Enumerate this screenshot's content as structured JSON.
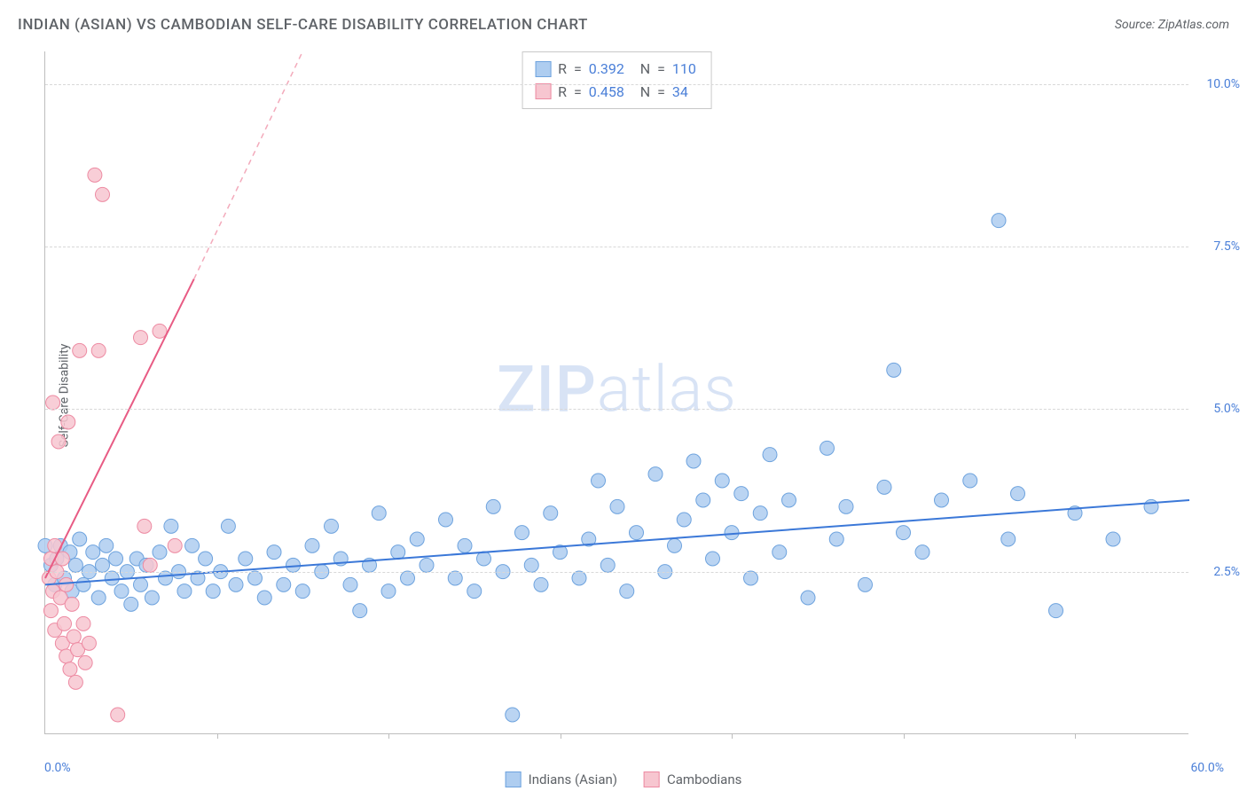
{
  "title": "INDIAN (ASIAN) VS CAMBODIAN SELF-CARE DISABILITY CORRELATION CHART",
  "source": "Source: ZipAtlas.com",
  "y_axis_label": "Self-Care Disability",
  "watermark_bold": "ZIP",
  "watermark_rest": "atlas",
  "plot": {
    "type": "scatter",
    "xlim": [
      0,
      60
    ],
    "ylim": [
      0,
      10.5
    ],
    "y_ticks": [
      2.5,
      5.0,
      7.5,
      10.0
    ],
    "y_tick_labels": [
      "2.5%",
      "5.0%",
      "7.5%",
      "10.0%"
    ],
    "x_tick_marks": [
      9,
      18,
      27,
      36,
      45,
      54
    ],
    "x_min_label": "0.0%",
    "x_max_label": "60.0%",
    "grid_color": "#d8d8d8",
    "series": [
      {
        "name": "Indians (Asian)",
        "color_fill": "#aecdf0",
        "color_stroke": "#6ea3de",
        "marker_r": 8,
        "r_value": "0.392",
        "n_value": "110",
        "trend": {
          "x1": 0,
          "y1": 2.3,
          "x2": 60,
          "y2": 3.6,
          "color": "#3b78d8",
          "width": 2
        },
        "points": [
          [
            0,
            2.9
          ],
          [
            0.3,
            2.6
          ],
          [
            0.5,
            2.3
          ],
          [
            0.6,
            2.7
          ],
          [
            0.8,
            2.9
          ],
          [
            1,
            2.4
          ],
          [
            1.3,
            2.8
          ],
          [
            1.4,
            2.2
          ],
          [
            1.6,
            2.6
          ],
          [
            1.8,
            3.0
          ],
          [
            2,
            2.3
          ],
          [
            2.3,
            2.5
          ],
          [
            2.5,
            2.8
          ],
          [
            2.8,
            2.1
          ],
          [
            3,
            2.6
          ],
          [
            3.2,
            2.9
          ],
          [
            3.5,
            2.4
          ],
          [
            3.7,
            2.7
          ],
          [
            4,
            2.2
          ],
          [
            4.3,
            2.5
          ],
          [
            4.5,
            2.0
          ],
          [
            4.8,
            2.7
          ],
          [
            5,
            2.3
          ],
          [
            5.3,
            2.6
          ],
          [
            5.6,
            2.1
          ],
          [
            6,
            2.8
          ],
          [
            6.3,
            2.4
          ],
          [
            6.6,
            3.2
          ],
          [
            7,
            2.5
          ],
          [
            7.3,
            2.2
          ],
          [
            7.7,
            2.9
          ],
          [
            8,
            2.4
          ],
          [
            8.4,
            2.7
          ],
          [
            8.8,
            2.2
          ],
          [
            9.2,
            2.5
          ],
          [
            9.6,
            3.2
          ],
          [
            10,
            2.3
          ],
          [
            10.5,
            2.7
          ],
          [
            11,
            2.4
          ],
          [
            11.5,
            2.1
          ],
          [
            12,
            2.8
          ],
          [
            12.5,
            2.3
          ],
          [
            13,
            2.6
          ],
          [
            13.5,
            2.2
          ],
          [
            14,
            2.9
          ],
          [
            14.5,
            2.5
          ],
          [
            15,
            3.2
          ],
          [
            15.5,
            2.7
          ],
          [
            16,
            2.3
          ],
          [
            16.5,
            1.9
          ],
          [
            17,
            2.6
          ],
          [
            17.5,
            3.4
          ],
          [
            18,
            2.2
          ],
          [
            18.5,
            2.8
          ],
          [
            19,
            2.4
          ],
          [
            19.5,
            3.0
          ],
          [
            20,
            2.6
          ],
          [
            21,
            3.3
          ],
          [
            21.5,
            2.4
          ],
          [
            22,
            2.9
          ],
          [
            22.5,
            2.2
          ],
          [
            23,
            2.7
          ],
          [
            23.5,
            3.5
          ],
          [
            24,
            2.5
          ],
          [
            24.5,
            0.3
          ],
          [
            25,
            3.1
          ],
          [
            25.5,
            2.6
          ],
          [
            26,
            2.3
          ],
          [
            26.5,
            3.4
          ],
          [
            27,
            2.8
          ],
          [
            28,
            2.4
          ],
          [
            28.5,
            3.0
          ],
          [
            29,
            3.9
          ],
          [
            29.5,
            2.6
          ],
          [
            30,
            3.5
          ],
          [
            30.5,
            2.2
          ],
          [
            31,
            3.1
          ],
          [
            32,
            4.0
          ],
          [
            32.5,
            2.5
          ],
          [
            33,
            2.9
          ],
          [
            33.5,
            3.3
          ],
          [
            34,
            4.2
          ],
          [
            34.5,
            3.6
          ],
          [
            35,
            2.7
          ],
          [
            35.5,
            3.9
          ],
          [
            36,
            3.1
          ],
          [
            36.5,
            3.7
          ],
          [
            37,
            2.4
          ],
          [
            37.5,
            3.4
          ],
          [
            38,
            4.3
          ],
          [
            38.5,
            2.8
          ],
          [
            39,
            3.6
          ],
          [
            40,
            2.1
          ],
          [
            41,
            4.4
          ],
          [
            41.5,
            3.0
          ],
          [
            42,
            3.5
          ],
          [
            43,
            2.3
          ],
          [
            44,
            3.8
          ],
          [
            44.5,
            5.6
          ],
          [
            45,
            3.1
          ],
          [
            46,
            2.8
          ],
          [
            47,
            3.6
          ],
          [
            48.5,
            3.9
          ],
          [
            50,
            7.9
          ],
          [
            50.5,
            3.0
          ],
          [
            51,
            3.7
          ],
          [
            53,
            1.9
          ],
          [
            54,
            3.4
          ],
          [
            56,
            3.0
          ],
          [
            58,
            3.5
          ]
        ]
      },
      {
        "name": "Cambodians",
        "color_fill": "#f7c6d0",
        "color_stroke": "#ed8aa2",
        "marker_r": 8,
        "r_value": "0.458",
        "n_value": "34",
        "trend_solid": {
          "x1": 0,
          "y1": 2.4,
          "x2": 7.8,
          "y2": 7.0,
          "color": "#e85b84",
          "width": 2
        },
        "trend_dash": {
          "x1": 7.8,
          "y1": 7.0,
          "x2": 13.5,
          "y2": 10.5,
          "color": "#f3aabb",
          "width": 1.5
        },
        "points": [
          [
            0.2,
            2.4
          ],
          [
            0.3,
            2.7
          ],
          [
            0.3,
            1.9
          ],
          [
            0.4,
            2.2
          ],
          [
            0.4,
            5.1
          ],
          [
            0.5,
            2.9
          ],
          [
            0.5,
            1.6
          ],
          [
            0.6,
            2.5
          ],
          [
            0.7,
            4.5
          ],
          [
            0.8,
            2.1
          ],
          [
            0.9,
            1.4
          ],
          [
            0.9,
            2.7
          ],
          [
            1.0,
            1.7
          ],
          [
            1.1,
            2.3
          ],
          [
            1.1,
            1.2
          ],
          [
            1.2,
            4.8
          ],
          [
            1.3,
            1.0
          ],
          [
            1.4,
            2.0
          ],
          [
            1.5,
            1.5
          ],
          [
            1.6,
            0.8
          ],
          [
            1.7,
            1.3
          ],
          [
            1.8,
            5.9
          ],
          [
            2.0,
            1.7
          ],
          [
            2.1,
            1.1
          ],
          [
            2.3,
            1.4
          ],
          [
            2.6,
            8.6
          ],
          [
            2.8,
            5.9
          ],
          [
            3.0,
            8.3
          ],
          [
            3.8,
            0.3
          ],
          [
            5.0,
            6.1
          ],
          [
            5.2,
            3.2
          ],
          [
            5.5,
            2.6
          ],
          [
            6.0,
            6.2
          ],
          [
            6.8,
            2.9
          ]
        ]
      }
    ]
  },
  "legend_bottom": [
    {
      "label": "Indians (Asian)",
      "fill": "#aecdf0",
      "stroke": "#6ea3de"
    },
    {
      "label": "Cambodians",
      "fill": "#f7c6d0",
      "stroke": "#ed8aa2"
    }
  ]
}
